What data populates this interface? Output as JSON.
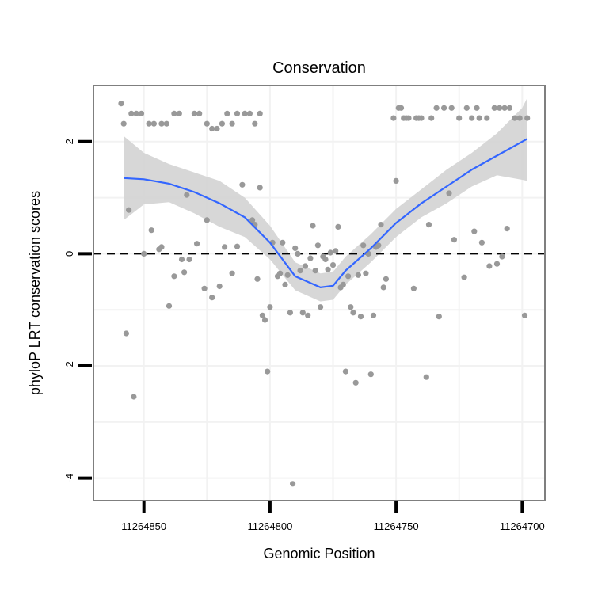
{
  "chart_data": {
    "type": "scatter",
    "title": "Conservation",
    "xlabel": "Genomic Position",
    "ylabel": "phyloP LRT conservation scores",
    "x_reversed": true,
    "xlim": [
      11264870,
      11264691
    ],
    "ylim": [
      -4.4,
      3.0
    ],
    "x_ticks": [
      11264850,
      11264800,
      11264750,
      11264700
    ],
    "x_tick_labels": [
      "11264850",
      "11264800",
      "11264750",
      "11264700"
    ],
    "y_ticks": [
      2,
      0,
      -2,
      -4
    ],
    "y_tick_labels": [
      "2",
      "0",
      "-2",
      "-4"
    ],
    "grid": true,
    "reference_line": {
      "y": 0,
      "style": "dashed"
    },
    "colors": {
      "points": "#999999",
      "smooth_line": "#3366FF",
      "confidence_band": "#D3D3D3",
      "panel_border": "#7F7F7F",
      "grid": "#F2F2F2",
      "reference_line": "#000000"
    },
    "series": [
      {
        "name": "phyloP scores",
        "type": "scatter",
        "points": [
          {
            "x": 11264859,
            "y": 2.68
          },
          {
            "x": 11264858,
            "y": 2.32
          },
          {
            "x": 11264855,
            "y": 2.5
          },
          {
            "x": 11264853,
            "y": 2.5
          },
          {
            "x": 11264851,
            "y": 2.5
          },
          {
            "x": 11264848,
            "y": 2.32
          },
          {
            "x": 11264846,
            "y": 2.32
          },
          {
            "x": 11264843,
            "y": 2.32
          },
          {
            "x": 11264841,
            "y": 2.32
          },
          {
            "x": 11264838,
            "y": 2.5
          },
          {
            "x": 11264836,
            "y": 2.5
          },
          {
            "x": 11264830,
            "y": 2.5
          },
          {
            "x": 11264828,
            "y": 2.5
          },
          {
            "x": 11264825,
            "y": 2.32
          },
          {
            "x": 11264823,
            "y": 2.23
          },
          {
            "x": 11264821,
            "y": 2.23
          },
          {
            "x": 11264819,
            "y": 2.32
          },
          {
            "x": 11264817,
            "y": 2.5
          },
          {
            "x": 11264815,
            "y": 2.32
          },
          {
            "x": 11264813,
            "y": 2.5
          },
          {
            "x": 11264810,
            "y": 2.5
          },
          {
            "x": 11264808,
            "y": 2.5
          },
          {
            "x": 11264806,
            "y": 2.32
          },
          {
            "x": 11264804,
            "y": 2.5
          },
          {
            "x": 11264857,
            "y": -1.42
          },
          {
            "x": 11264856,
            "y": 0.78
          },
          {
            "x": 11264854,
            "y": -2.55
          },
          {
            "x": 11264850,
            "y": 0.0
          },
          {
            "x": 11264847,
            "y": 0.42
          },
          {
            "x": 11264844,
            "y": 0.08
          },
          {
            "x": 11264843,
            "y": 0.12
          },
          {
            "x": 11264840,
            "y": -0.93
          },
          {
            "x": 11264838,
            "y": -0.4
          },
          {
            "x": 11264835,
            "y": -0.1
          },
          {
            "x": 11264834,
            "y": -0.33
          },
          {
            "x": 11264833,
            "y": 1.05
          },
          {
            "x": 11264832,
            "y": -0.1
          },
          {
            "x": 11264829,
            "y": 0.18
          },
          {
            "x": 11264826,
            "y": -0.62
          },
          {
            "x": 11264825,
            "y": 0.6
          },
          {
            "x": 11264823,
            "y": -0.78
          },
          {
            "x": 11264820,
            "y": -0.58
          },
          {
            "x": 11264818,
            "y": 0.12
          },
          {
            "x": 11264815,
            "y": -0.35
          },
          {
            "x": 11264813,
            "y": 0.13
          },
          {
            "x": 11264811,
            "y": 1.23
          },
          {
            "x": 11264807,
            "y": 0.6
          },
          {
            "x": 11264806,
            "y": 0.52
          },
          {
            "x": 11264805,
            "y": -0.45
          },
          {
            "x": 11264804,
            "y": 1.18
          },
          {
            "x": 11264803,
            "y": -1.1
          },
          {
            "x": 11264802,
            "y": -1.18
          },
          {
            "x": 11264801,
            "y": -2.1
          },
          {
            "x": 11264800,
            "y": -0.95
          },
          {
            "x": 11264799,
            "y": 0.2
          },
          {
            "x": 11264797,
            "y": -0.4
          },
          {
            "x": 11264796,
            "y": -0.35
          },
          {
            "x": 11264795,
            "y": 0.2
          },
          {
            "x": 11264794,
            "y": -0.55
          },
          {
            "x": 11264793,
            "y": -0.38
          },
          {
            "x": 11264792,
            "y": -1.05
          },
          {
            "x": 11264791,
            "y": -4.1
          },
          {
            "x": 11264790,
            "y": 0.1
          },
          {
            "x": 11264789,
            "y": 0.0
          },
          {
            "x": 11264788,
            "y": -0.3
          },
          {
            "x": 11264787,
            "y": -1.05
          },
          {
            "x": 11264786,
            "y": -0.22
          },
          {
            "x": 11264785,
            "y": -1.1
          },
          {
            "x": 11264784,
            "y": -0.08
          },
          {
            "x": 11264783,
            "y": 0.5
          },
          {
            "x": 11264782,
            "y": -0.3
          },
          {
            "x": 11264781,
            "y": 0.15
          },
          {
            "x": 11264780,
            "y": -0.95
          },
          {
            "x": 11264779,
            "y": -0.05
          },
          {
            "x": 11264778,
            "y": -0.1
          },
          {
            "x": 11264777,
            "y": -0.28
          },
          {
            "x": 11264776,
            "y": 0.02
          },
          {
            "x": 11264775,
            "y": -0.2
          },
          {
            "x": 11264774,
            "y": 0.05
          },
          {
            "x": 11264773,
            "y": 0.48
          },
          {
            "x": 11264772,
            "y": -0.6
          },
          {
            "x": 11264771,
            "y": -0.55
          },
          {
            "x": 11264770,
            "y": -2.1
          },
          {
            "x": 11264769,
            "y": -0.4
          },
          {
            "x": 11264768,
            "y": -0.95
          },
          {
            "x": 11264767,
            "y": -1.05
          },
          {
            "x": 11264766,
            "y": -2.3
          },
          {
            "x": 11264765,
            "y": -0.38
          },
          {
            "x": 11264764,
            "y": -1.12
          },
          {
            "x": 11264763,
            "y": 0.15
          },
          {
            "x": 11264762,
            "y": -0.35
          },
          {
            "x": 11264761,
            "y": 0.0
          },
          {
            "x": 11264760,
            "y": -2.15
          },
          {
            "x": 11264759,
            "y": -1.1
          },
          {
            "x": 11264758,
            "y": 0.12
          },
          {
            "x": 11264757,
            "y": 0.15
          },
          {
            "x": 11264756,
            "y": 0.52
          },
          {
            "x": 11264755,
            "y": -0.6
          },
          {
            "x": 11264754,
            "y": -0.45
          },
          {
            "x": 11264751,
            "y": 2.42
          },
          {
            "x": 11264750,
            "y": 1.3
          },
          {
            "x": 11264749,
            "y": 2.6
          },
          {
            "x": 11264748,
            "y": 2.6
          },
          {
            "x": 11264747,
            "y": 2.42
          },
          {
            "x": 11264746,
            "y": 2.42
          },
          {
            "x": 11264745,
            "y": 2.42
          },
          {
            "x": 11264743,
            "y": -0.62
          },
          {
            "x": 11264742,
            "y": 2.42
          },
          {
            "x": 11264741,
            "y": 2.42
          },
          {
            "x": 11264740,
            "y": 2.42
          },
          {
            "x": 11264738,
            "y": -2.2
          },
          {
            "x": 11264737,
            "y": 0.52
          },
          {
            "x": 11264736,
            "y": 2.42
          },
          {
            "x": 11264734,
            "y": 2.6
          },
          {
            "x": 11264733,
            "y": -1.12
          },
          {
            "x": 11264731,
            "y": 2.6
          },
          {
            "x": 11264729,
            "y": 1.08
          },
          {
            "x": 11264728,
            "y": 2.6
          },
          {
            "x": 11264727,
            "y": 0.25
          },
          {
            "x": 11264725,
            "y": 2.42
          },
          {
            "x": 11264723,
            "y": -0.42
          },
          {
            "x": 11264722,
            "y": 2.6
          },
          {
            "x": 11264720,
            "y": 2.42
          },
          {
            "x": 11264719,
            "y": 0.4
          },
          {
            "x": 11264718,
            "y": 2.6
          },
          {
            "x": 11264717,
            "y": 2.42
          },
          {
            "x": 11264716,
            "y": 0.2
          },
          {
            "x": 11264714,
            "y": 2.42
          },
          {
            "x": 11264713,
            "y": -0.22
          },
          {
            "x": 11264711,
            "y": 2.6
          },
          {
            "x": 11264710,
            "y": -0.18
          },
          {
            "x": 11264709,
            "y": 2.6
          },
          {
            "x": 11264708,
            "y": -0.05
          },
          {
            "x": 11264707,
            "y": 2.6
          },
          {
            "x": 11264706,
            "y": 0.45
          },
          {
            "x": 11264705,
            "y": 2.6
          },
          {
            "x": 11264703,
            "y": 2.42
          },
          {
            "x": 11264701,
            "y": 2.42
          },
          {
            "x": 11264699,
            "y": -1.1
          },
          {
            "x": 11264698,
            "y": 2.42
          }
        ]
      },
      {
        "name": "smoothed fit",
        "type": "line",
        "x": [
          11264858,
          11264850,
          11264840,
          11264830,
          11264820,
          11264810,
          11264800,
          11264790,
          11264780,
          11264775,
          11264770,
          11264760,
          11264750,
          11264740,
          11264730,
          11264720,
          11264710,
          11264700,
          11264698
        ],
        "y": [
          1.35,
          1.33,
          1.25,
          1.1,
          0.9,
          0.65,
          0.2,
          -0.4,
          -0.6,
          -0.57,
          -0.3,
          0.1,
          0.55,
          0.9,
          1.2,
          1.5,
          1.75,
          2.0,
          2.05
        ],
        "lower": [
          0.6,
          0.88,
          0.92,
          0.72,
          0.48,
          0.3,
          -0.1,
          -0.65,
          -0.85,
          -0.82,
          -0.55,
          -0.15,
          0.3,
          0.65,
          0.9,
          1.2,
          1.4,
          1.32,
          1.3
        ],
        "upper": [
          2.1,
          1.8,
          1.6,
          1.45,
          1.3,
          1.0,
          0.5,
          -0.15,
          -0.35,
          -0.32,
          -0.05,
          0.35,
          0.8,
          1.15,
          1.5,
          1.8,
          2.15,
          2.6,
          2.78
        ]
      }
    ]
  }
}
